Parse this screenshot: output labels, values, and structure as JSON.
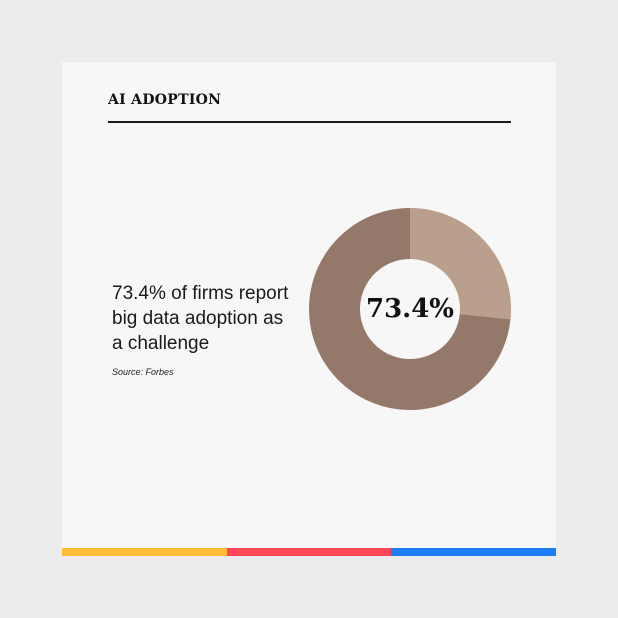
{
  "card": {
    "title": "AI ADOPTION",
    "statement_lines": [
      "73.4% of firms report",
      "big data adoption as",
      "a challenge"
    ],
    "source": "Source: Forbes"
  },
  "chart_data": {
    "type": "pie",
    "variant": "donut",
    "center_label": "73.4%",
    "slices": [
      {
        "value": 73.4,
        "color": "#94786a"
      },
      {
        "value": 26.6,
        "color": "#baa08c"
      }
    ]
  },
  "accent_bar": {
    "colors": [
      "#ffbc3a",
      "#ff4655",
      "#1e7cf2"
    ]
  }
}
